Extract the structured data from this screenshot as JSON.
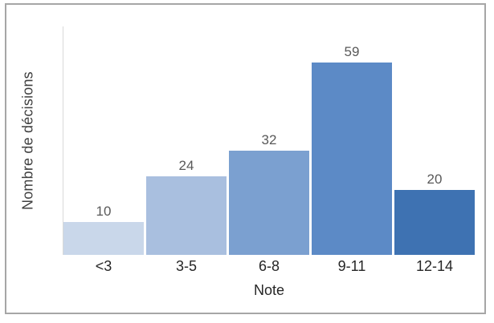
{
  "chart_data": {
    "type": "bar",
    "title": "",
    "categories": [
      "<3",
      "3-5",
      "6-8",
      "9-11",
      "12-14"
    ],
    "values": [
      10,
      24,
      32,
      59,
      20
    ],
    "bar_colors": [
      "#c9d7ea",
      "#a9bfdf",
      "#7ba0d0",
      "#5c8ac6",
      "#3e72b2"
    ],
    "value_labels": [
      "10",
      "24",
      "32",
      "59",
      "20"
    ],
    "xlabel": "Note",
    "ylabel": "Nombre de décisions",
    "ylim": [
      0,
      70
    ],
    "grid": false,
    "legend": false,
    "value_labels_shown": true,
    "y_axis_ticks_shown": false
  },
  "colors": {
    "background": "#ffffff",
    "frame_border": "#a6a6a6",
    "y_axis_line": "#d9d9d9",
    "value_label": "#595959",
    "category_label": "#262626",
    "axis_title": "#404040"
  }
}
